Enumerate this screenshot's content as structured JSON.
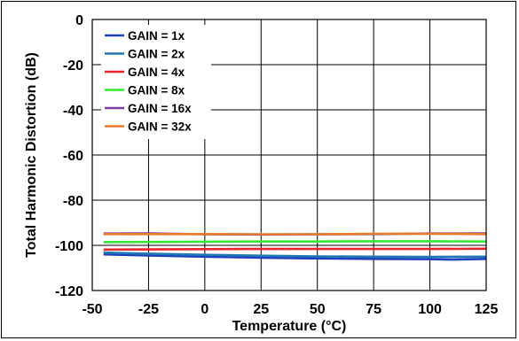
{
  "chart_data": {
    "type": "line",
    "title": "",
    "xlabel": "Temperature (°C)",
    "ylabel": "Total Harmonic Distortion (dB)",
    "xlim": [
      -50,
      125
    ],
    "ylim": [
      -120,
      0
    ],
    "xticks": [
      -50,
      -25,
      0,
      25,
      50,
      75,
      100,
      125
    ],
    "yticks": [
      -120,
      -100,
      -80,
      -60,
      -40,
      -20,
      0
    ],
    "xtick_labels": [
      "-50",
      "-25",
      "0",
      "25",
      "50",
      "75",
      "100",
      "125"
    ],
    "ytick_labels": [
      "-120",
      "-100",
      "-80",
      "-60",
      "-40",
      "-20",
      "0"
    ],
    "grid": true,
    "legend_position": "top-left",
    "series": [
      {
        "name": "GAIN = 1x",
        "color": "#1f3fbf",
        "x": [
          -45,
          -25,
          0,
          25,
          50,
          75,
          100,
          110,
          125
        ],
        "y": [
          -104,
          -104.5,
          -105,
          -105.5,
          -105.8,
          -106,
          -106.1,
          -106.3,
          -106
        ]
      },
      {
        "name": "GAIN = 2x",
        "color": "#1f77b4",
        "x": [
          -45,
          -25,
          0,
          25,
          50,
          75,
          100,
          125
        ],
        "y": [
          -103.2,
          -103.7,
          -104.2,
          -104.6,
          -104.9,
          -105,
          -105.1,
          -105
        ]
      },
      {
        "name": "GAIN = 4x",
        "color": "#e8232a",
        "x": [
          -45,
          -25,
          0,
          25,
          50,
          75,
          100,
          125
        ],
        "y": [
          -101.9,
          -101.8,
          -101.7,
          -101.6,
          -101.6,
          -101.6,
          -101.6,
          -101.5
        ]
      },
      {
        "name": "GAIN = 8x",
        "color": "#33e833",
        "x": [
          -45,
          -25,
          0,
          25,
          50,
          75,
          100,
          125
        ],
        "y": [
          -98.6,
          -98.5,
          -98.4,
          -98.3,
          -98.3,
          -98.2,
          -98.2,
          -98.3
        ]
      },
      {
        "name": "GAIN = 16x",
        "color": "#7a3fa0",
        "x": [
          -45,
          -25,
          0,
          25,
          50,
          75,
          100,
          125
        ],
        "y": [
          -94.8,
          -94.7,
          -95.1,
          -95.2,
          -95.1,
          -95.0,
          -94.8,
          -94.7
        ]
      },
      {
        "name": "GAIN = 32x",
        "color": "#e87a28",
        "x": [
          -45,
          -25,
          0,
          25,
          50,
          75,
          100,
          125
        ],
        "y": [
          -95.0,
          -95.0,
          -95.0,
          -95.1,
          -95.1,
          -94.9,
          -94.9,
          -95.0
        ]
      }
    ]
  }
}
